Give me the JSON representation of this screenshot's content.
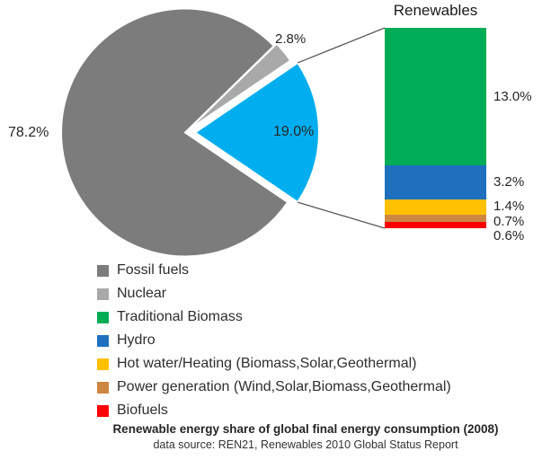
{
  "chart_data": {
    "type": "pie",
    "title": "Renewables",
    "caption": "Renewable energy share of global final energy consumption (2008)",
    "source_note": "data source: REN21, Renewables 2010 Global Status Report",
    "pie": {
      "slices": [
        {
          "label": "Fossil fuels",
          "value": 78.2,
          "display": "78.2%",
          "color": "#7C7C7C"
        },
        {
          "label": "Nuclear",
          "value": 2.8,
          "display": "2.8%",
          "color": "#A9A9A9"
        },
        {
          "label": "Renewables",
          "value": 19.0,
          "display": "19.0%",
          "color": "#00AEEF"
        }
      ]
    },
    "bar": {
      "title": "Renewables",
      "segments": [
        {
          "label": "Traditional Biomass",
          "value": 13.0,
          "display": "13.0%",
          "color": "#00AC55"
        },
        {
          "label": "Hydro",
          "value": 3.2,
          "display": "3.2%",
          "color": "#1E70BE"
        },
        {
          "label": "Hot water/Heating (Biomass,Solar,Geothermal)",
          "value": 1.4,
          "display": "1.4%",
          "color": "#FFC000"
        },
        {
          "label": "Power generation (Wind,Solar,Biomass,Geothermal)",
          "value": 0.7,
          "display": "0.7%",
          "color": "#CD8741"
        },
        {
          "label": "Biofuels",
          "value": 0.6,
          "display": "0.6%",
          "color": "#FF0000"
        }
      ]
    },
    "legend": [
      {
        "label": "Fossil fuels",
        "color": "#7C7C7C"
      },
      {
        "label": "Nuclear",
        "color": "#A9A9A9"
      },
      {
        "label": "Traditional Biomass",
        "color": "#00AC55"
      },
      {
        "label": "Hydro",
        "color": "#1E70BE"
      },
      {
        "label": "Hot water/Heating (Biomass,Solar,Geothermal)",
        "color": "#FFC000"
      },
      {
        "label": "Power generation (Wind,Solar,Biomass,Geothermal)",
        "color": "#CD8741"
      },
      {
        "label": "Biofuels",
        "color": "#FF0000"
      }
    ],
    "connector_color": "#58595B"
  }
}
